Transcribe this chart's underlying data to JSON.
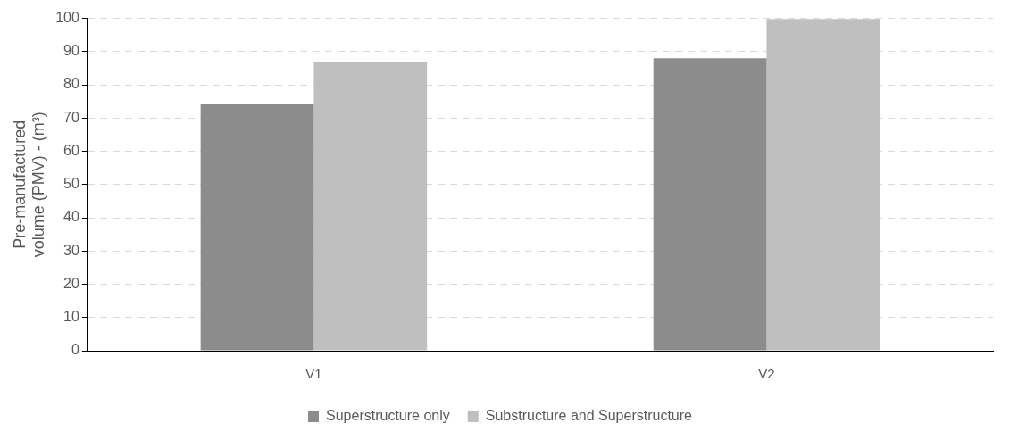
{
  "chart_data": {
    "type": "bar",
    "ylabel": "Pre-manufactured volume (PMV) - (m³)",
    "categories": [
      "V1",
      "V2"
    ],
    "series": [
      {
        "name": "Superstructure only",
        "color": "#8c8c8c",
        "values": [
          74.3,
          88
        ]
      },
      {
        "name": "Substructure and Superstructure",
        "color": "#bfbfbf",
        "values": [
          86.8,
          99.8
        ]
      }
    ],
    "ylim": [
      0,
      100
    ],
    "yticks": [
      0,
      10,
      20,
      30,
      40,
      50,
      60,
      70,
      80,
      90,
      100
    ],
    "grid": "y",
    "legend": "bottom"
  }
}
